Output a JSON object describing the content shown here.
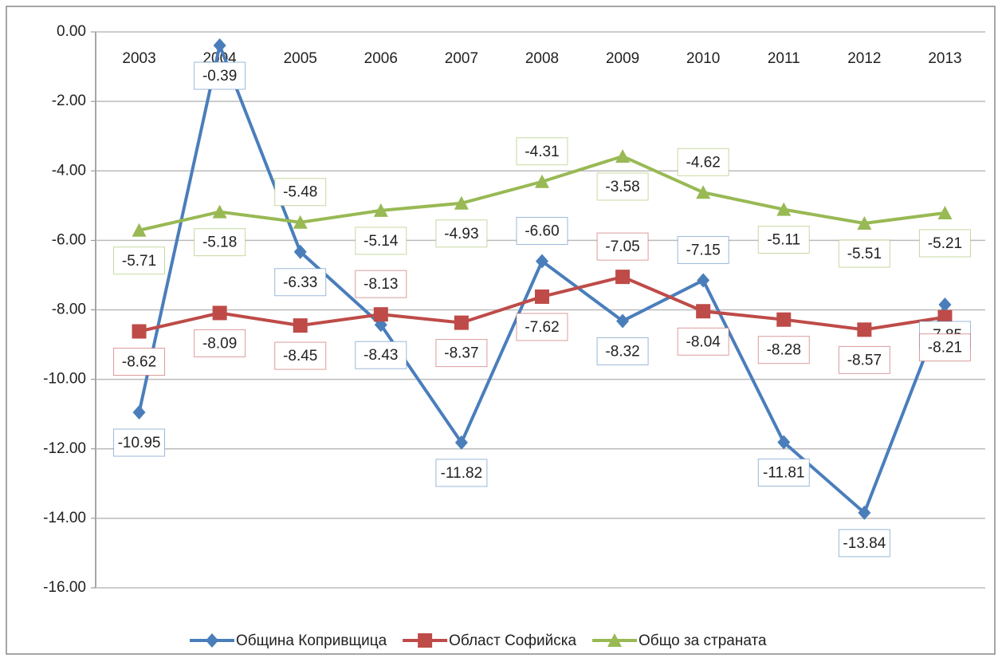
{
  "chart_data": {
    "type": "line",
    "categories": [
      "2003",
      "2004",
      "2005",
      "2006",
      "2007",
      "2008",
      "2009",
      "2010",
      "2011",
      "2012",
      "2013"
    ],
    "series": [
      {
        "name": "Община Копривщица",
        "color": "#4a7ebb",
        "marker": "diamond",
        "values": [
          -10.95,
          -0.39,
          -6.33,
          -8.43,
          -11.82,
          -6.6,
          -8.32,
          -7.15,
          -11.81,
          -13.84,
          -7.85
        ],
        "value_labels": [
          "-10.95",
          "-0.39",
          "-6.33",
          "-8.43",
          "-11.82",
          "-6.60",
          "-8.32",
          "-7.15",
          "-11.81",
          "-13.84",
          "-7.85"
        ]
      },
      {
        "name": "Област Софийска",
        "color": "#be4b48",
        "marker": "square",
        "values": [
          -8.62,
          -8.09,
          -8.45,
          -8.13,
          -8.37,
          -7.62,
          -7.05,
          -8.04,
          -8.28,
          -8.57,
          -8.21
        ],
        "value_labels": [
          "-8.62",
          "-8.09",
          "-8.45",
          "-8.13",
          "-8.37",
          "-7.62",
          "-7.05",
          "-8.04",
          "-8.28",
          "-8.57",
          "-8.21"
        ]
      },
      {
        "name": "Общо за страната",
        "color": "#98b954",
        "marker": "triangle",
        "values": [
          -5.71,
          -5.18,
          -5.48,
          -5.14,
          -4.93,
          -4.31,
          -3.58,
          -4.62,
          -5.11,
          -5.51,
          -5.21
        ],
        "value_labels": [
          "-5.71",
          "-5.18",
          "-5.48",
          "-5.14",
          "-4.93",
          "-4.31",
          "-3.58",
          "-4.62",
          "-5.11",
          "-5.51",
          "-5.21"
        ]
      }
    ],
    "ylim": [
      -16,
      0
    ],
    "yticks": [
      {
        "value": 0,
        "label": "0.00"
      },
      {
        "value": -2,
        "label": "-2.00"
      },
      {
        "value": -4,
        "label": "-4.00"
      },
      {
        "value": -6,
        "label": "-6.00"
      },
      {
        "value": -8,
        "label": "-8.00"
      },
      {
        "value": -10,
        "label": "-10.00"
      },
      {
        "value": -12,
        "label": "-12.00"
      },
      {
        "value": -14,
        "label": "-14.00"
      },
      {
        "value": -16,
        "label": "-16.00"
      }
    ],
    "grid": true,
    "legend": "bottom"
  }
}
